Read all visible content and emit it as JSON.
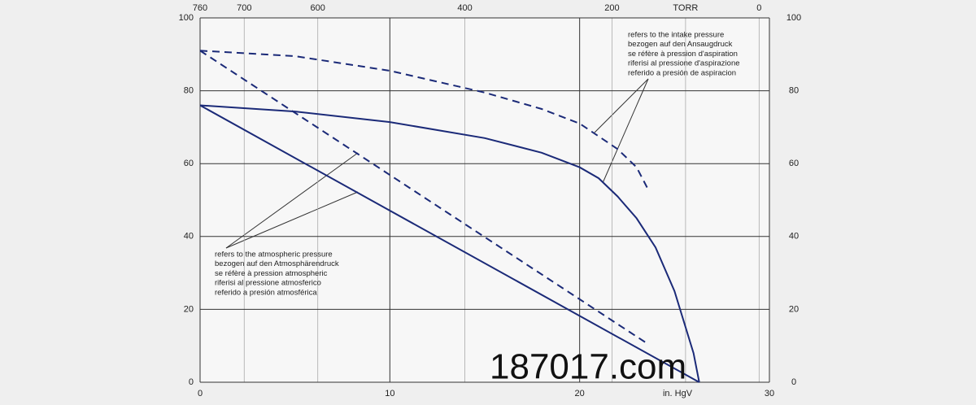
{
  "chart_data": {
    "type": "line",
    "x_label": "in. HgV",
    "xlim": [
      0,
      30
    ],
    "xticks": [
      0,
      10,
      20,
      30
    ],
    "ylim": [
      0,
      100
    ],
    "yticks": [
      0,
      20,
      40,
      60,
      80,
      100
    ],
    "x2lim": [
      760,
      -14
    ],
    "x2ticks": [
      760,
      700,
      600,
      400,
      200,
      {
        "value": 100,
        "label": "TORR"
      },
      0
    ],
    "grid": true,
    "color": "#1b2a78",
    "series": [
      {
        "style": "dashed",
        "x": [
          0,
          5,
          10,
          15,
          18,
          20,
          22,
          23,
          23.6
        ],
        "values": [
          91,
          89.5,
          85.5,
          79.5,
          75,
          71,
          64,
          59,
          53
        ]
      },
      {
        "style": "solid",
        "x": [
          0,
          5,
          10,
          15,
          18,
          20,
          21,
          22,
          23,
          24,
          25,
          26,
          26.3
        ],
        "values": [
          76,
          74.3,
          71.4,
          67,
          63,
          59,
          56,
          51,
          45,
          37,
          25,
          8,
          0
        ]
      },
      {
        "style": "dashed",
        "x": [
          0,
          23.6
        ],
        "values": [
          91,
          10.5
        ]
      },
      {
        "style": "solid",
        "x": [
          0,
          26.3
        ],
        "values": [
          76,
          0
        ]
      }
    ],
    "annotations": [
      [
        "refers to the intake pressure",
        "bezogen auf den Ansaugdruck",
        "se réfère à pression d'aspiration",
        "riferisi al pressione d'aspirazione",
        "referido a presión de aspiracion"
      ],
      [
        "refers to the atmospheric pressure",
        "bezogen auf den Atmosphärendruck",
        "se réfère à pression atmospheric",
        "riferisi al pressione atmosferico",
        "referido a presión atmosférica"
      ]
    ],
    "watermark": "187017.com"
  }
}
